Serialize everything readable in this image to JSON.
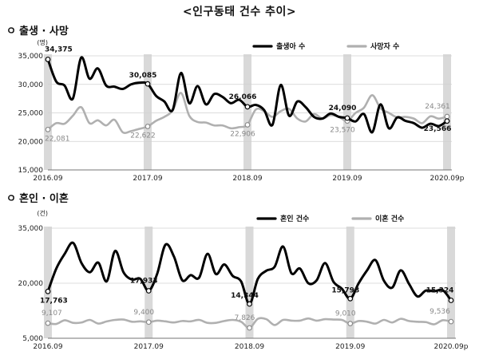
{
  "page": {
    "title": "<인구동태 건수 추이>"
  },
  "sections": [
    {
      "bullet": "ㅇ",
      "heading": "출생 · 사망"
    },
    {
      "bullet": "ㅇ",
      "heading": "혼인 · 이혼"
    }
  ],
  "colors": {
    "primary_series": "#000000",
    "secondary_series": "#b0b0b0",
    "period_band": "#d9d9d9",
    "grid": "#d0d0d0"
  },
  "chart_data": [
    {
      "type": "line",
      "unit_label": "(명)",
      "ylim": [
        15000,
        35000
      ],
      "yticks": [
        "15,000",
        "20,000",
        "25,000",
        "30,000",
        "35,000"
      ],
      "ytick_values": [
        15000,
        20000,
        25000,
        30000,
        35000
      ],
      "xlim": [
        0,
        48
      ],
      "xticks": [
        "2016.09",
        "2017.09",
        "2018.09",
        "2019.09",
        "2020.09p"
      ],
      "xtick_positions": [
        0,
        12,
        24,
        36,
        48
      ],
      "september_bands": [
        0,
        12,
        24,
        36,
        48
      ],
      "grid": true,
      "legend_position": "top-right",
      "series": [
        {
          "name": "출생아 수",
          "style": "primary",
          "x": [
            0,
            1,
            2,
            3,
            4,
            5,
            6,
            7,
            8,
            9,
            10,
            11,
            12,
            13,
            14,
            15,
            16,
            17,
            18,
            19,
            20,
            21,
            22,
            23,
            24,
            25,
            26,
            27,
            28,
            29,
            30,
            31,
            32,
            33,
            34,
            35,
            36,
            37,
            38,
            39,
            40,
            41,
            42,
            43,
            44,
            45,
            46,
            47,
            48
          ],
          "values": [
            34375,
            30500,
            29800,
            27500,
            34700,
            31000,
            32800,
            29800,
            29600,
            29200,
            30000,
            30300,
            30085,
            28000,
            27000,
            25500,
            32000,
            26700,
            29700,
            26500,
            28300,
            27800,
            26700,
            27300,
            26066,
            26400,
            25500,
            22900,
            29900,
            24500,
            27000,
            26000,
            24300,
            24000,
            24900,
            24300,
            24090,
            23500,
            24800,
            21600,
            26500,
            22300,
            24200,
            23600,
            23200,
            22400,
            23100,
            22700,
            23566
          ],
          "labels": [
            {
              "index": 0,
              "text": "34,375"
            },
            {
              "index": 12,
              "text": "30,085"
            },
            {
              "index": 24,
              "text": "26,066"
            },
            {
              "index": 36,
              "text": "24,090"
            },
            {
              "index": 48,
              "text": "23,566"
            }
          ]
        },
        {
          "name": "사망자 수",
          "style": "secondary",
          "x": [
            0,
            1,
            2,
            3,
            4,
            5,
            6,
            7,
            8,
            9,
            10,
            11,
            12,
            13,
            14,
            15,
            16,
            17,
            18,
            19,
            20,
            21,
            22,
            23,
            24,
            25,
            26,
            27,
            28,
            29,
            30,
            31,
            32,
            33,
            34,
            35,
            36,
            37,
            38,
            39,
            40,
            41,
            42,
            43,
            44,
            45,
            46,
            47,
            48
          ],
          "values": [
            22081,
            23200,
            23100,
            24500,
            26000,
            23200,
            23700,
            22800,
            23800,
            21600,
            21800,
            22200,
            22622,
            23600,
            24300,
            25400,
            28500,
            24500,
            23400,
            23300,
            22800,
            22800,
            22300,
            22500,
            22906,
            25600,
            25300,
            24300,
            25300,
            25700,
            24000,
            23500,
            24800,
            24000,
            24600,
            24300,
            23570,
            25000,
            25900,
            28100,
            25800,
            25000,
            24200,
            24300,
            24000,
            23200,
            24400,
            24000,
            24361
          ],
          "labels": [
            {
              "index": 0,
              "text": "22,081"
            },
            {
              "index": 12,
              "text": "22,622"
            },
            {
              "index": 24,
              "text": "22,906"
            },
            {
              "index": 36,
              "text": "23,570"
            },
            {
              "index": 48,
              "text": "24,361"
            }
          ]
        }
      ]
    },
    {
      "type": "line",
      "unit_label": "(건)",
      "ylim": [
        5000,
        35000
      ],
      "yticks": [
        "5,000",
        "20,000",
        "35,000"
      ],
      "ytick_values": [
        5000,
        20000,
        35000
      ],
      "xlim": [
        0,
        48
      ],
      "xticks": [
        "2016.09",
        "2017.09",
        "2018.09",
        "2019.09",
        "2020.09p"
      ],
      "xtick_positions": [
        0,
        12,
        24,
        36,
        48
      ],
      "september_bands": [
        0,
        12,
        24,
        36,
        48
      ],
      "grid": true,
      "legend_position": "top-right",
      "series": [
        {
          "name": "혼인 건수",
          "style": "primary",
          "x": [
            0,
            1,
            2,
            3,
            4,
            5,
            6,
            7,
            8,
            9,
            10,
            11,
            12,
            13,
            14,
            15,
            16,
            17,
            18,
            19,
            20,
            21,
            22,
            23,
            24,
            25,
            26,
            27,
            28,
            29,
            30,
            31,
            32,
            33,
            34,
            35,
            36,
            37,
            38,
            39,
            40,
            41,
            42,
            43,
            44,
            45,
            46,
            47,
            48
          ],
          "values": [
            17763,
            24000,
            28000,
            31000,
            25500,
            23000,
            25600,
            20500,
            28800,
            23000,
            21000,
            21200,
            17933,
            22500,
            30500,
            27300,
            20800,
            22200,
            21500,
            28000,
            22500,
            25100,
            22000,
            20500,
            14344,
            21200,
            23400,
            24500,
            30000,
            22700,
            24000,
            20000,
            20800,
            25500,
            20400,
            18500,
            15798,
            20000,
            23500,
            26300,
            20700,
            18800,
            23500,
            19800,
            16400,
            18000,
            17800,
            18100,
            15324
          ],
          "labels": [
            {
              "index": 0,
              "text": "17,763"
            },
            {
              "index": 12,
              "text": "17,933"
            },
            {
              "index": 24,
              "text": "14,344"
            },
            {
              "index": 36,
              "text": "15,798"
            },
            {
              "index": 48,
              "text": "15,324"
            }
          ]
        },
        {
          "name": "이혼 건수",
          "style": "secondary",
          "x": [
            0,
            1,
            2,
            3,
            4,
            5,
            6,
            7,
            8,
            9,
            10,
            11,
            12,
            13,
            14,
            15,
            16,
            17,
            18,
            19,
            20,
            21,
            22,
            23,
            24,
            25,
            26,
            27,
            28,
            29,
            30,
            31,
            32,
            33,
            34,
            35,
            36,
            37,
            38,
            39,
            40,
            41,
            42,
            43,
            44,
            45,
            46,
            47,
            48
          ],
          "values": [
            9107,
            8900,
            9900,
            9200,
            9300,
            10000,
            9000,
            9600,
            10000,
            10100,
            9500,
            9600,
            9400,
            9800,
            9600,
            9300,
            9700,
            9600,
            10000,
            9200,
            9200,
            9700,
            10000,
            9500,
            7826,
            10300,
            10200,
            8600,
            10000,
            9800,
            9800,
            10400,
            9800,
            10200,
            10100,
            10000,
            9010,
            9700,
            9500,
            9000,
            10000,
            9300,
            10300,
            9700,
            9500,
            9400,
            8800,
            9900,
            9536
          ],
          "labels": [
            {
              "index": 0,
              "text": "9,107"
            },
            {
              "index": 12,
              "text": "9,400"
            },
            {
              "index": 24,
              "text": "7,826"
            },
            {
              "index": 36,
              "text": "9,010"
            },
            {
              "index": 48,
              "text": "9,536"
            }
          ]
        }
      ]
    }
  ]
}
